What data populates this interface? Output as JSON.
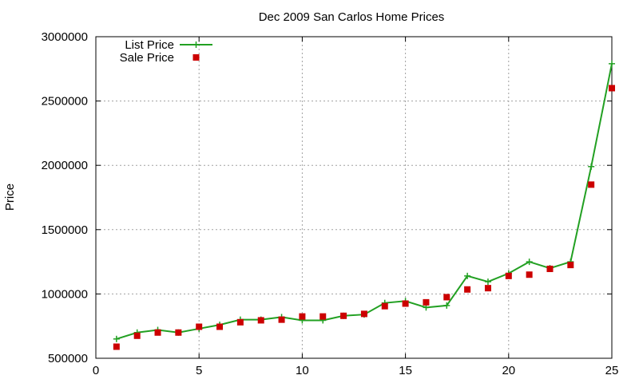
{
  "chart_data": {
    "type": "line",
    "title": "Dec 2009 San Carlos Home Prices",
    "xlabel": "",
    "ylabel": "Price",
    "xlim": [
      0,
      25
    ],
    "ylim": [
      500000,
      3000000
    ],
    "xticks": [
      0,
      5,
      10,
      15,
      20,
      25
    ],
    "yticks": [
      500000,
      1000000,
      1500000,
      2000000,
      2500000,
      3000000
    ],
    "grid": true,
    "legend_position": "top-left",
    "x": [
      1,
      2,
      3,
      4,
      5,
      6,
      7,
      8,
      9,
      10,
      11,
      12,
      13,
      14,
      15,
      16,
      17,
      18,
      19,
      20,
      21,
      22,
      23,
      24,
      25
    ],
    "series": [
      {
        "name": "List Price",
        "style": "line-with-plus-markers",
        "color": "#22a022",
        "values": [
          650000,
          700000,
          720000,
          700000,
          730000,
          760000,
          800000,
          800000,
          820000,
          795000,
          795000,
          830000,
          840000,
          930000,
          945000,
          895000,
          910000,
          1140000,
          1095000,
          1160000,
          1250000,
          1200000,
          1250000,
          1990000,
          2790000
        ]
      },
      {
        "name": "Sale Price",
        "style": "square-markers",
        "color": "#cc0000",
        "values": [
          590000,
          675000,
          700000,
          700000,
          745000,
          745000,
          780000,
          795000,
          800000,
          825000,
          825000,
          830000,
          845000,
          905000,
          925000,
          935000,
          975000,
          1035000,
          1045000,
          1140000,
          1150000,
          1195000,
          1225000,
          1850000,
          2600000
        ]
      }
    ]
  }
}
